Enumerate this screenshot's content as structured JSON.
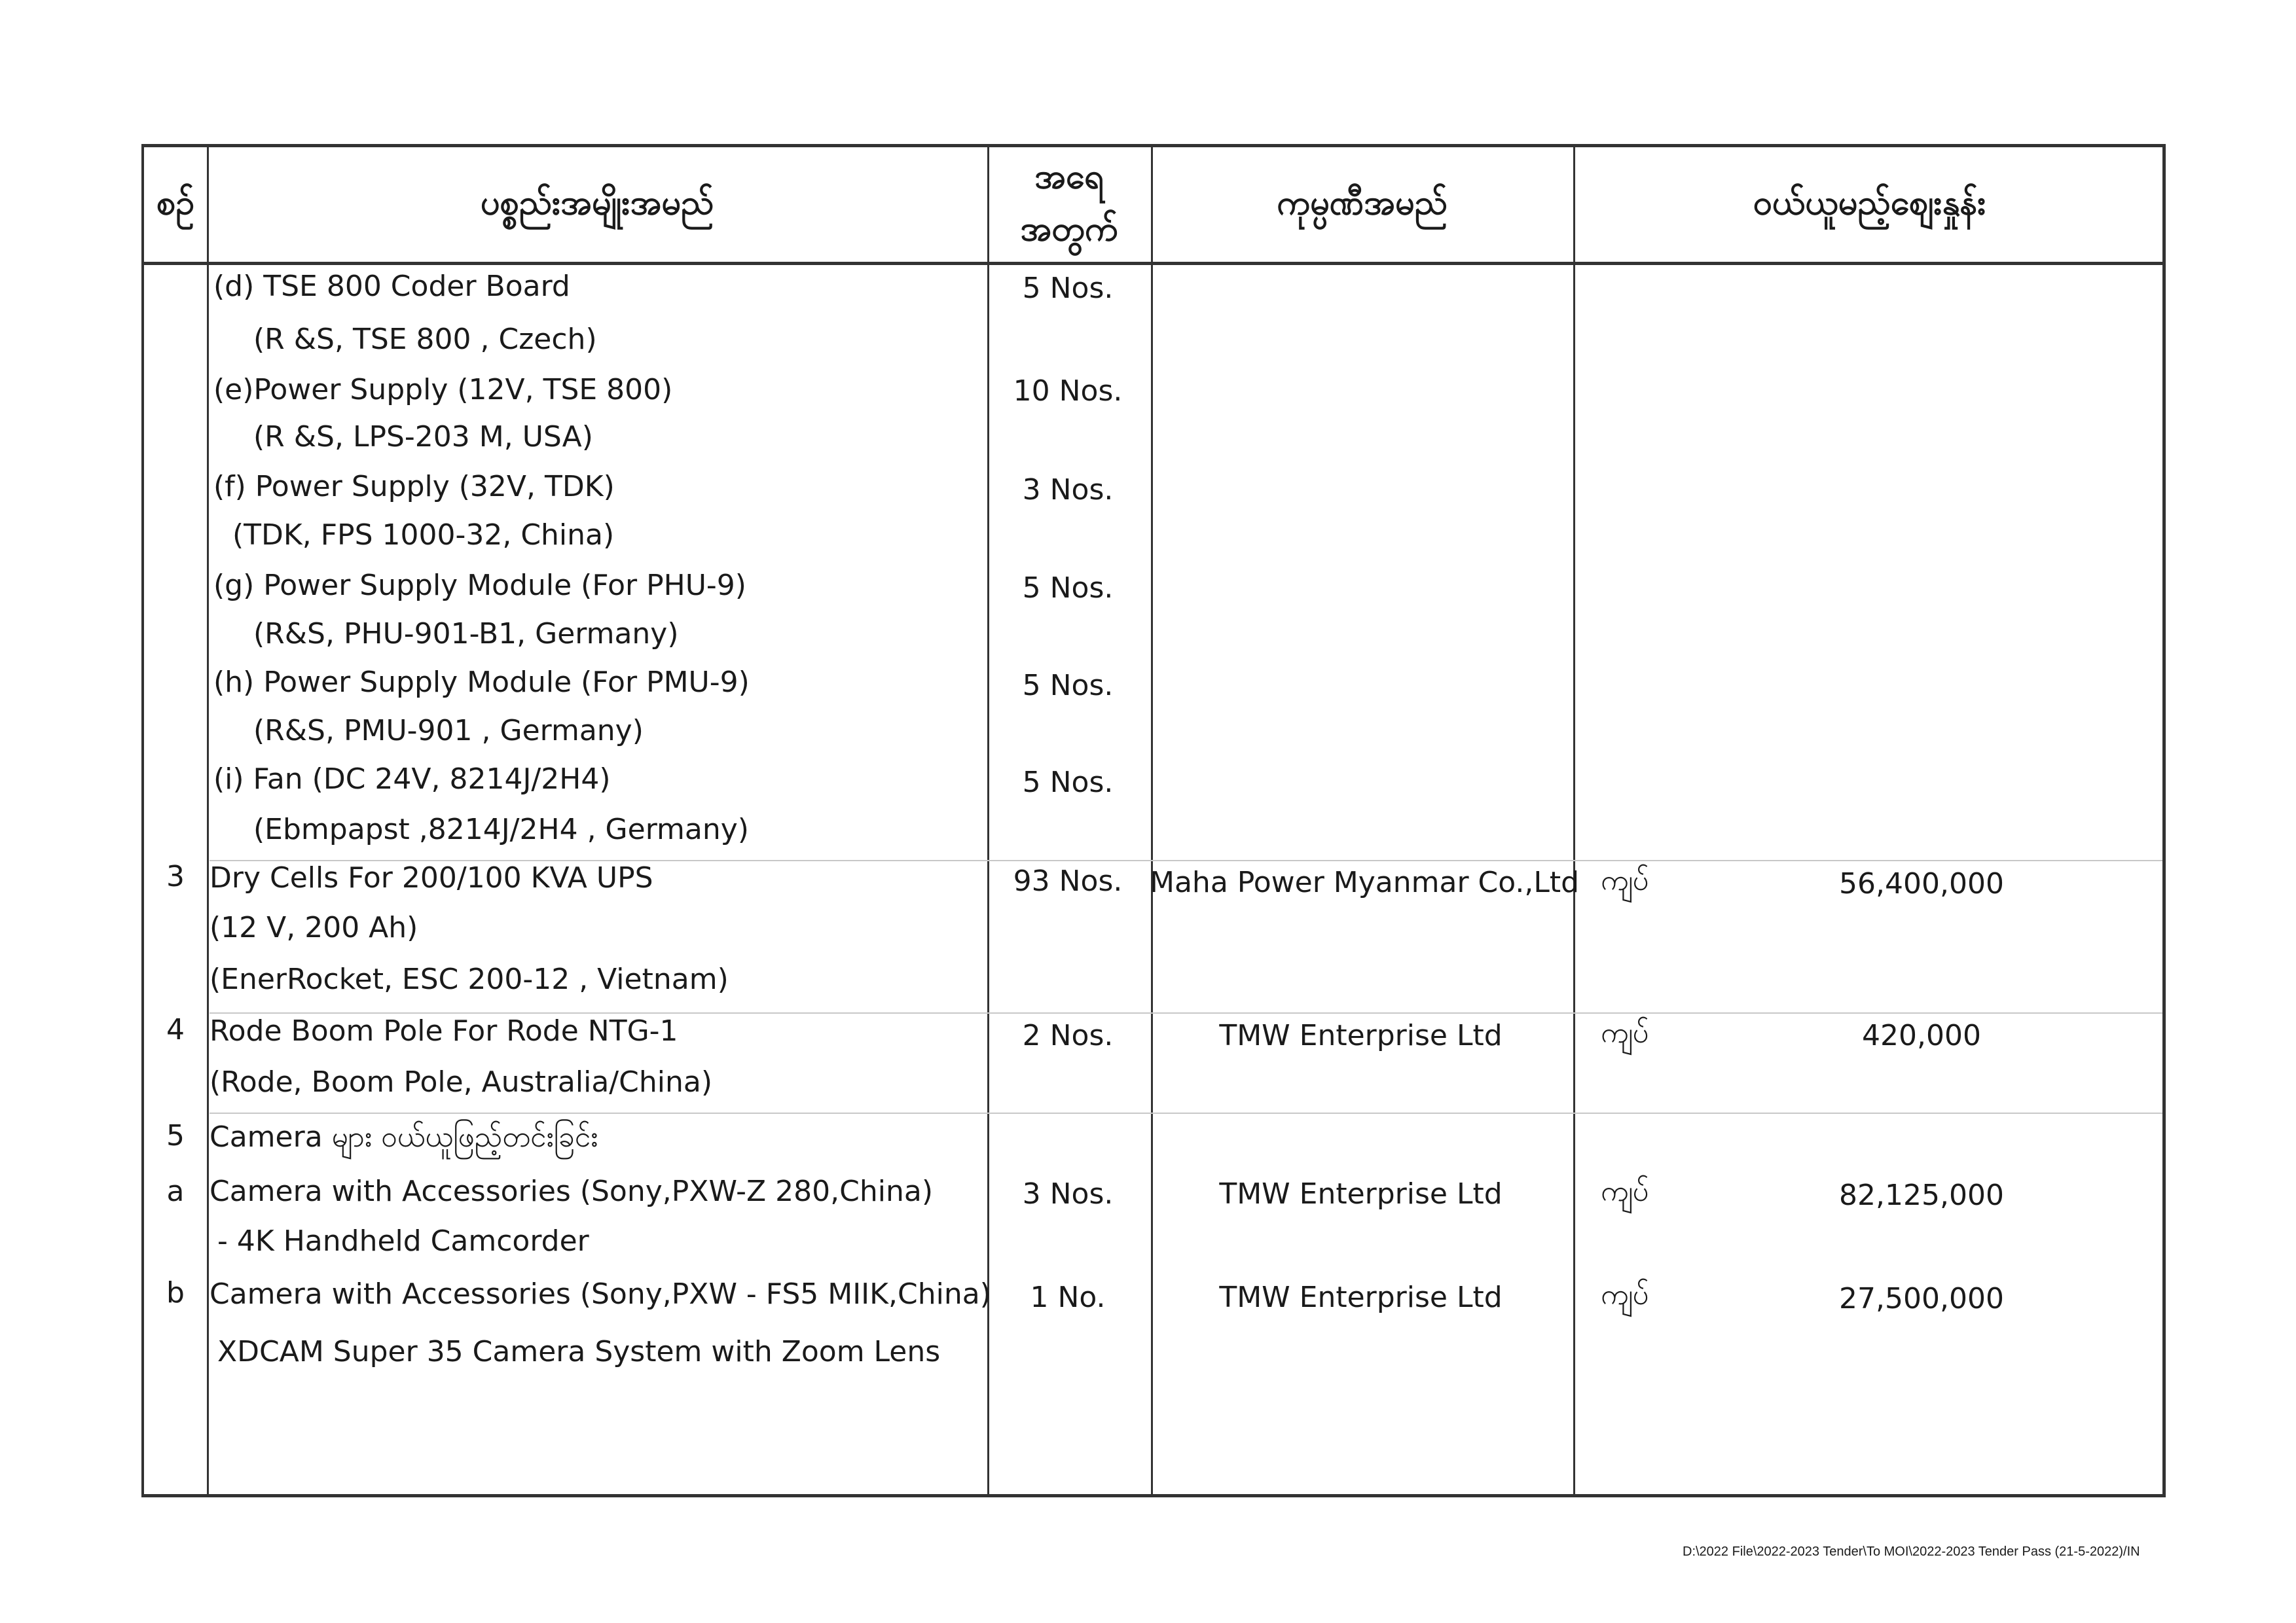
{
  "header": {
    "col_no": "စဉ်",
    "col_item": "ပစ္စည်းအမျိုးအမည်",
    "col_qty_1": "အရေ",
    "col_qty_2": "အတွက်",
    "col_company": "ကုမ္ပဏီအမည်",
    "col_price": "ဝယ်ယူမည့်စျေးနှုန်း"
  },
  "rows": [
    {
      "no": "",
      "lines": [
        "(d) TSE 800 Coder Board",
        "(R &S, TSE 800  , Czech)"
      ],
      "qty": "5 Nos."
    },
    {
      "no": "",
      "lines": [
        "(e)Power Supply (12V, TSE 800)",
        "(R &S, LPS-203 M, USA)"
      ],
      "qty": "10 Nos."
    },
    {
      "no": "",
      "lines": [
        "(f) Power Supply (32V, TDK)",
        "(TDK,  FPS 1000-32, China)"
      ],
      "qty": "3 Nos."
    },
    {
      "no": "",
      "lines": [
        "(g) Power Supply Module (For PHU-9)",
        "(R&S, PHU-901-B1, Germany)"
      ],
      "qty": "5 Nos."
    },
    {
      "no": "",
      "lines": [
        "(h) Power Supply Module (For PMU-9)",
        "(R&S, PMU-901 , Germany)"
      ],
      "qty": "5 Nos."
    },
    {
      "no": "",
      "lines": [
        "(i) Fan (DC 24V, 8214J/2H4)",
        "(Ebmpapst ,8214J/2H4 , Germany)"
      ],
      "qty": "5 Nos."
    },
    {
      "no": "3",
      "lines": [
        "Dry Cells For 200/100 KVA UPS",
        "(12 V, 200 Ah)",
        "(EnerRocket, ESC 200-12 , Vietnam)"
      ],
      "qty": "93 Nos.",
      "company": "Maha Power Myanmar Co.,Ltd",
      "currency": "ကျပ်",
      "price": "56,400,000"
    },
    {
      "no": "4",
      "lines": [
        "Rode Boom Pole For Rode NTG-1",
        "(Rode, Boom Pole, Australia/China)"
      ],
      "qty": "2 Nos.",
      "company": "TMW Enterprise Ltd",
      "currency": "ကျပ်",
      "price": "420,000"
    },
    {
      "no": "5",
      "lines": [
        "Camera များ ဝယ်ယူဖြည့်တင်းခြင်း"
      ]
    },
    {
      "no": "a",
      "lines": [
        "Camera with Accessories (Sony,PXW-Z 280,China)",
        "- 4K Handheld Camcorder"
      ],
      "qty": "3 Nos.",
      "company": "TMW Enterprise Ltd",
      "currency": "ကျပ်",
      "price": "82,125,000"
    },
    {
      "no": "b",
      "lines": [
        "Camera with Accessories (Sony,PXW - FS5 MIIK,China)",
        "XDCAM Super 35 Camera System with Zoom Lens"
      ],
      "qty": "1 No.",
      "company": "TMW Enterprise Ltd",
      "currency": "ကျပ်",
      "price": "27,500,000"
    }
  ],
  "footer": {
    "path": "D:\\2022 File\\2022-2023 Tender\\To MOI\\2022-2023 Tender Pass (21-5-2022)/IN"
  }
}
